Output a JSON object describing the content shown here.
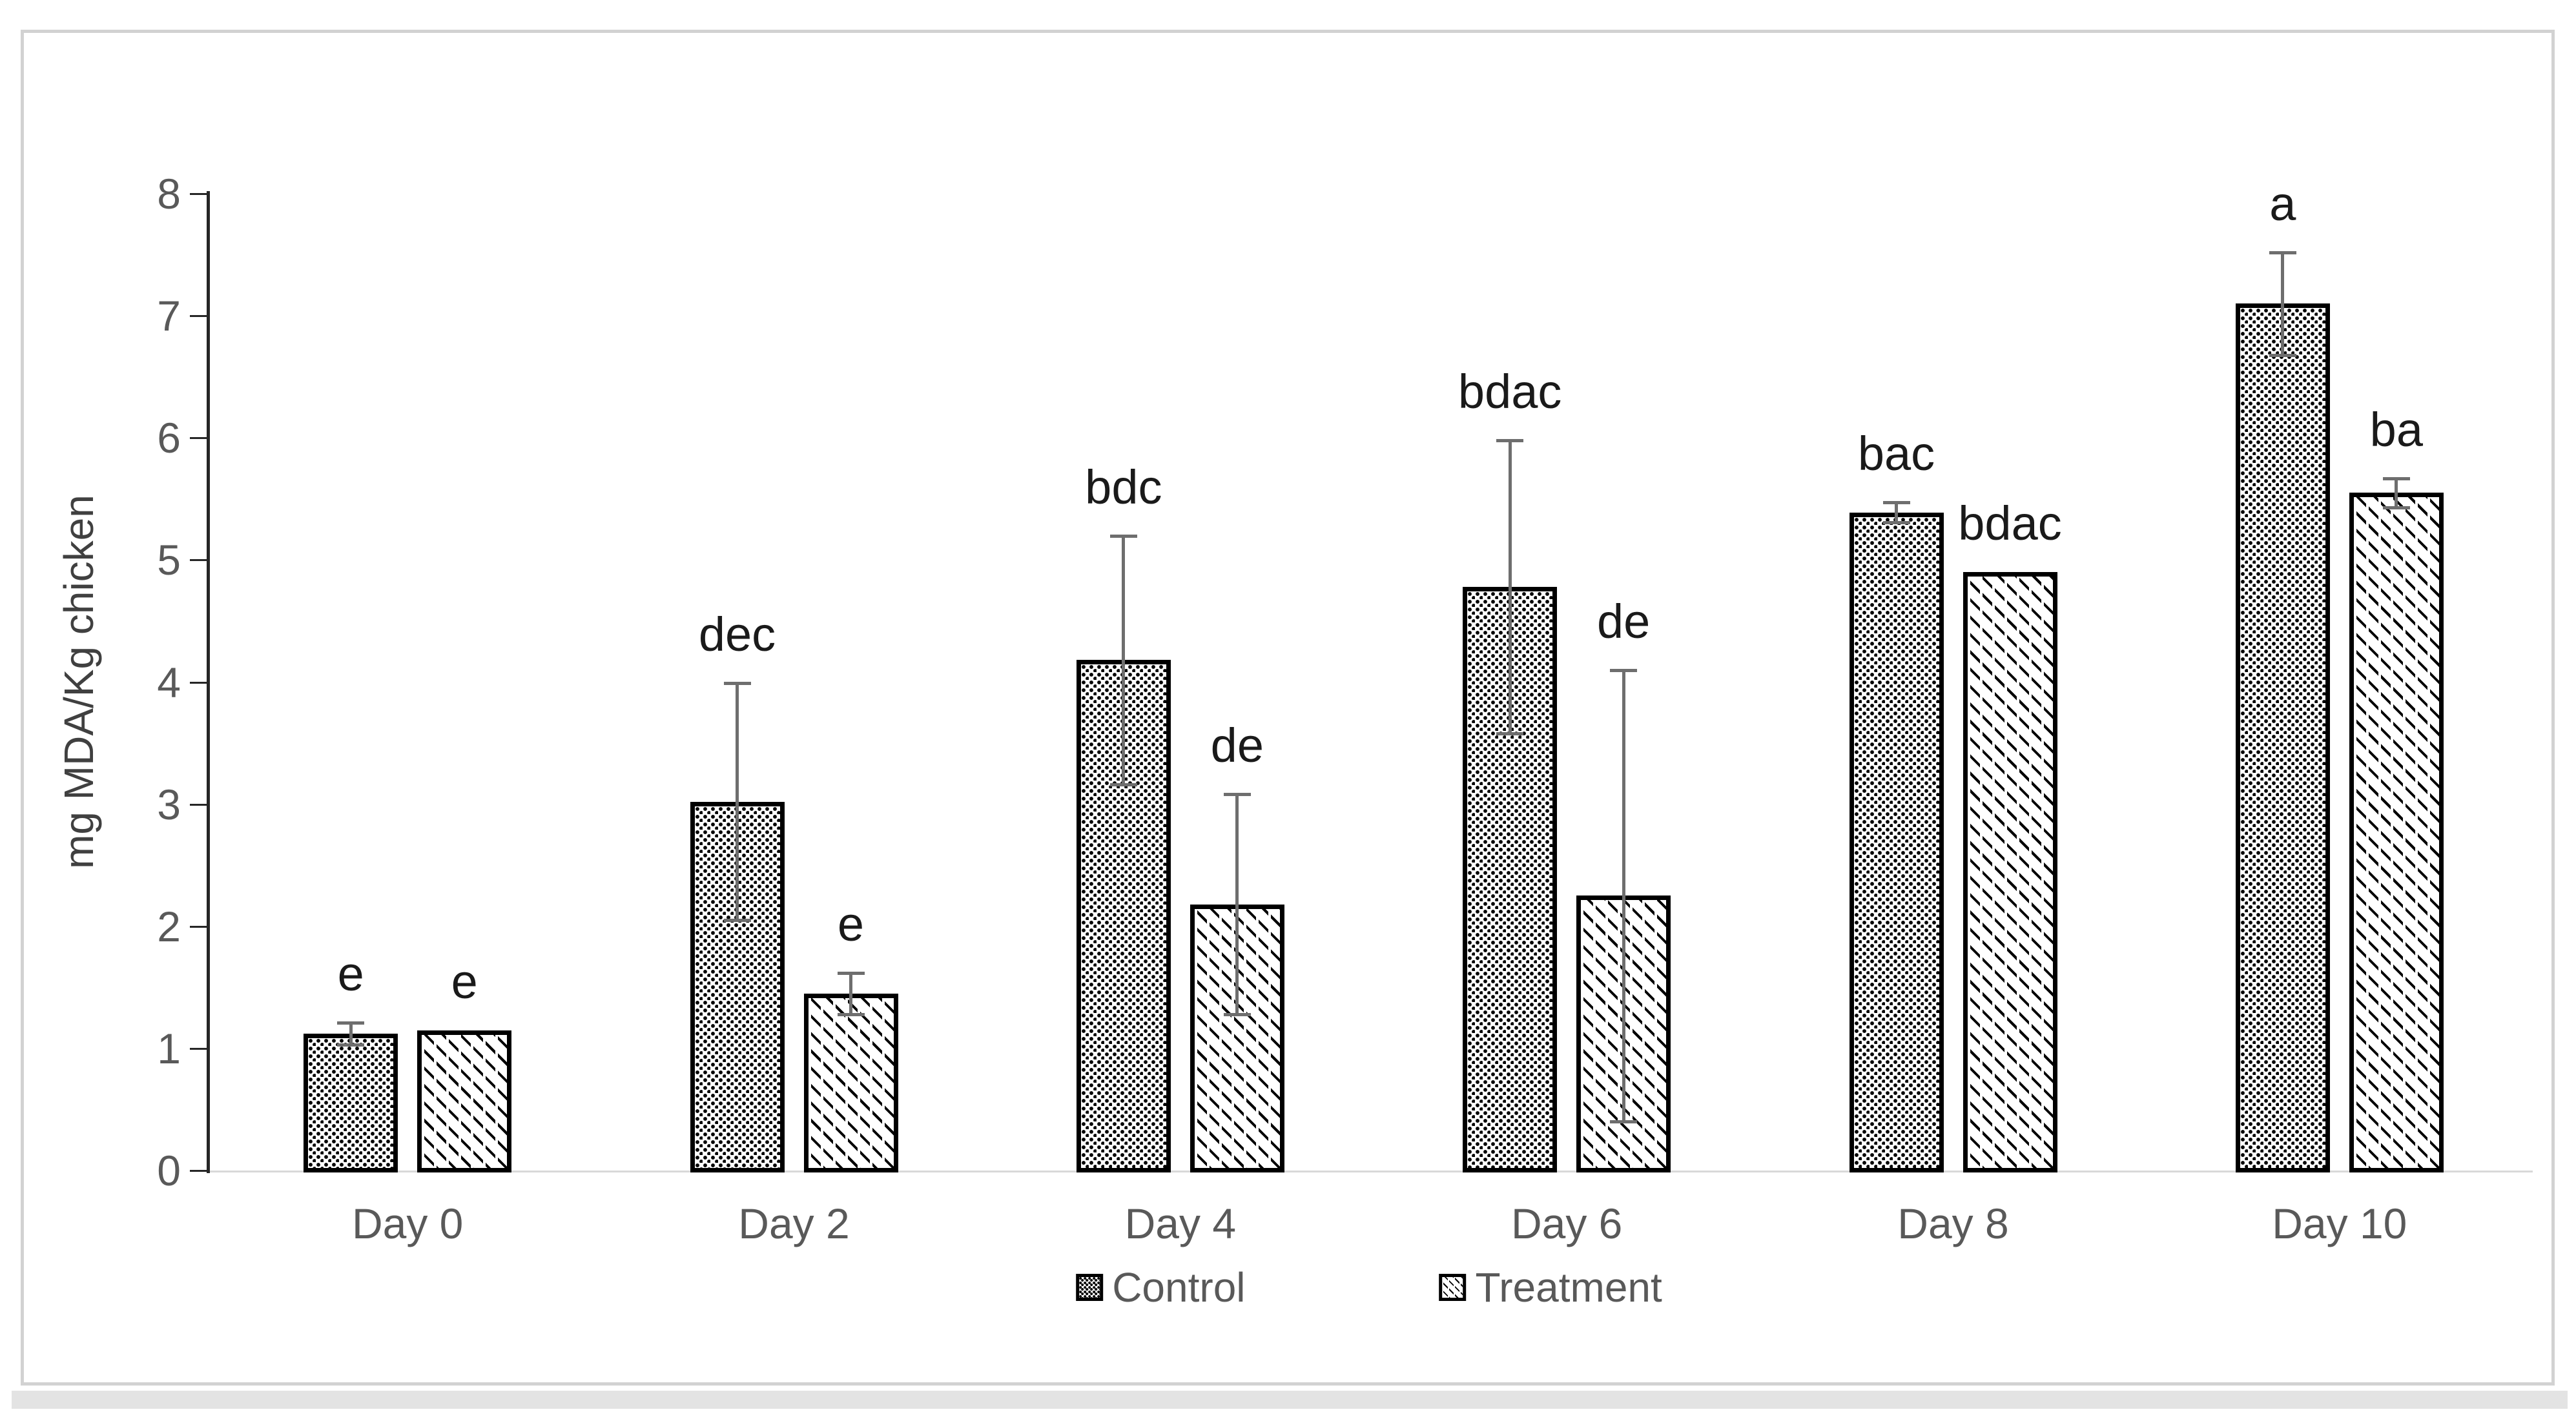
{
  "figure": {
    "background": "#ffffff",
    "frame_border_color": "#d2d2d2",
    "scrollbar_color": "#e3e3e3"
  },
  "colors": {
    "axis": "#262626",
    "baseline_grid": "#d9d9d9",
    "tick_text": "#595959",
    "letter_text": "#1a1a1a",
    "error_bar": "#6e6e6e",
    "bar_border": "#000000",
    "bar_fill": "#ffffff"
  },
  "chart_data": {
    "type": "bar",
    "title": "",
    "xlabel": "",
    "ylabel": "mg MDA/Kg chicken",
    "ylim": [
      0,
      8
    ],
    "ytick_step": 1,
    "grid": "baseline-only",
    "legend_position": "bottom",
    "categories": [
      "Day 0",
      "Day 2",
      "Day 4",
      "Day 6",
      "Day 8",
      "Day 10"
    ],
    "series": [
      {
        "name": "Control",
        "pattern": "dots",
        "values": [
          1.12,
          3.02,
          4.18,
          4.78,
          5.39,
          7.1
        ],
        "errors": [
          0.09,
          0.97,
          1.02,
          1.2,
          0.08,
          0.42
        ],
        "letters": [
          "e",
          "dec",
          "bdc",
          "bdac",
          "bac",
          "a"
        ]
      },
      {
        "name": "Treatment",
        "pattern": "diagonal-dashes",
        "values": [
          1.15,
          1.45,
          2.18,
          2.25,
          4.9,
          5.55
        ],
        "errors": [
          0,
          0.17,
          0.9,
          1.85,
          0,
          0.12
        ],
        "letters": [
          "e",
          "e",
          "de",
          "de",
          "bdac",
          "ba"
        ]
      }
    ]
  }
}
